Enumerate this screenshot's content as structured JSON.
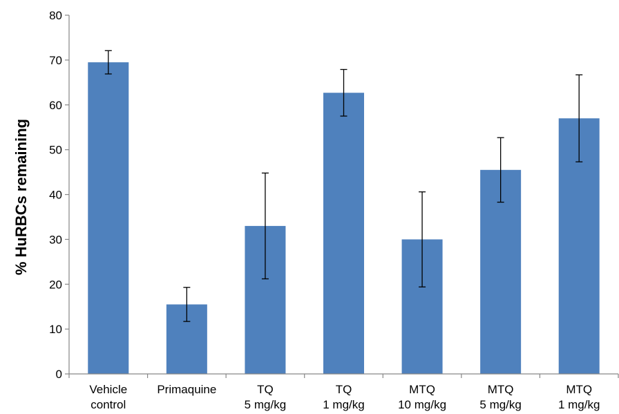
{
  "chart_data": {
    "type": "bar",
    "title": "",
    "xlabel": "",
    "ylabel": "% HuRBCs remaining",
    "ylim": [
      0,
      80
    ],
    "yticks": [
      0,
      10,
      20,
      30,
      40,
      50,
      60,
      70,
      80
    ],
    "grid": false,
    "legend": "none",
    "bar_color": "#4f81bd",
    "categories": [
      [
        "Vehicle",
        "control"
      ],
      [
        "Primaquine"
      ],
      [
        "TQ",
        "5 mg/kg"
      ],
      [
        "TQ",
        "1 mg/kg"
      ],
      [
        "MTQ",
        "10 mg/kg"
      ],
      [
        "MTQ",
        "5 mg/kg"
      ],
      [
        "MTQ",
        "1 mg/kg"
      ]
    ],
    "values": [
      69.5,
      15.5,
      33.0,
      62.7,
      30.0,
      45.5,
      57.0
    ],
    "error": [
      2.6,
      3.8,
      11.8,
      5.2,
      10.6,
      7.2,
      9.7
    ]
  }
}
